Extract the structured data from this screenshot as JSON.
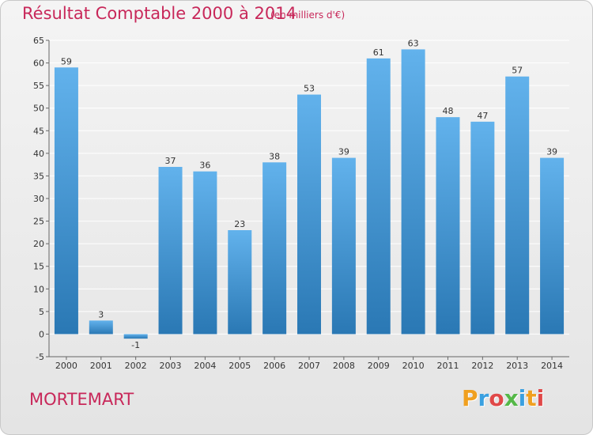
{
  "header": {
    "title": "Résultat Comptable 2000 à 2014",
    "subtitle": "(en milliers d'€)"
  },
  "footer": {
    "commune": "MORTEMART",
    "brand": "Proxiti",
    "brand_colors": [
      "#f0a020",
      "#3aa0e0",
      "#e04848",
      "#55b848",
      "#3aa0e0",
      "#f0a020",
      "#e04848"
    ]
  },
  "colors": {
    "bar_top": "#62b2ec",
    "bar_bottom": "#2a78b4",
    "accent": "#c8285a",
    "grid": "#ffffff"
  },
  "chart_data": {
    "type": "bar",
    "categories": [
      "2000",
      "2001",
      "2002",
      "2003",
      "2004",
      "2005",
      "2006",
      "2007",
      "2008",
      "2009",
      "2010",
      "2011",
      "2012",
      "2013",
      "2014"
    ],
    "values": [
      59,
      3,
      -1,
      37,
      36,
      23,
      38,
      53,
      39,
      61,
      63,
      48,
      47,
      57,
      39
    ],
    "title": "Résultat Comptable 2000 à 2014",
    "xlabel": "",
    "ylabel": "",
    "ylim": [
      -5,
      65
    ],
    "yticks": [
      -5,
      0,
      5,
      10,
      15,
      20,
      25,
      30,
      35,
      40,
      45,
      50,
      55,
      60,
      65
    ],
    "grid": true
  }
}
